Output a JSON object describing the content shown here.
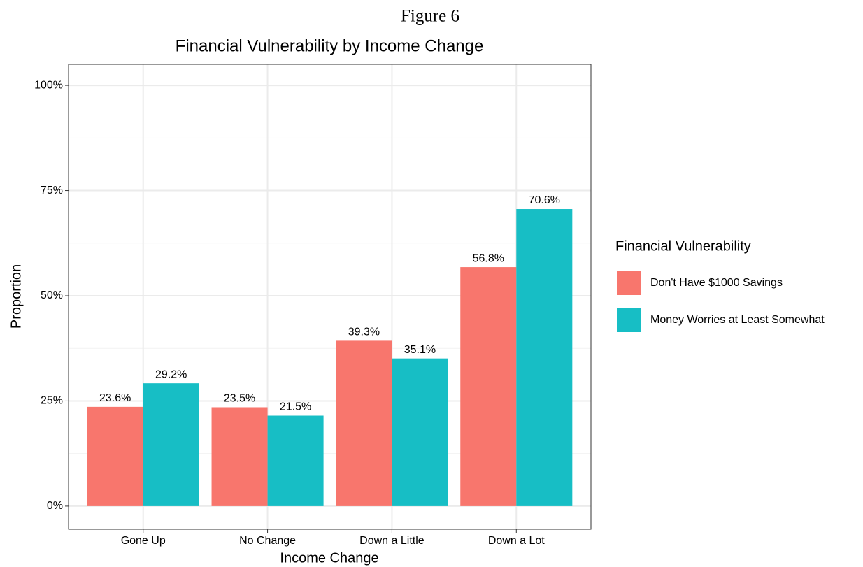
{
  "chart_data": {
    "type": "bar",
    "figure_label": "Figure 6",
    "title": "Financial Vulnerability by Income Change",
    "x_label": "Income Change",
    "y_label": "Proportion",
    "categories": [
      "Gone Up",
      "No Change",
      "Down a Little",
      "Down a Lot"
    ],
    "series": [
      {
        "name": "Don't Have $1000 Savings",
        "color": "#f8766d",
        "values": [
          23.6,
          23.5,
          39.3,
          56.8
        ],
        "value_labels": [
          "23.6%",
          "23.5%",
          "39.3%",
          "56.8%"
        ]
      },
      {
        "name": "Money Worries at Least Somewhat",
        "color": "#17bec5",
        "values": [
          29.2,
          21.5,
          35.1,
          70.6
        ],
        "value_labels": [
          "29.2%",
          "21.5%",
          "35.1%",
          "70.6%"
        ]
      }
    ],
    "legend_title": "Financial Vulnerability",
    "legend": "right",
    "ylim": [
      -5.5,
      105
    ],
    "yticks": [
      {
        "value": 0,
        "label": "0%"
      },
      {
        "value": 25,
        "label": "25%"
      },
      {
        "value": 50,
        "label": "50%"
      },
      {
        "value": 75,
        "label": "75%"
      },
      {
        "value": 100,
        "label": "100%"
      }
    ],
    "yticks_minor": [
      12.5,
      37.5,
      62.5,
      87.5
    ],
    "grid": true
  }
}
